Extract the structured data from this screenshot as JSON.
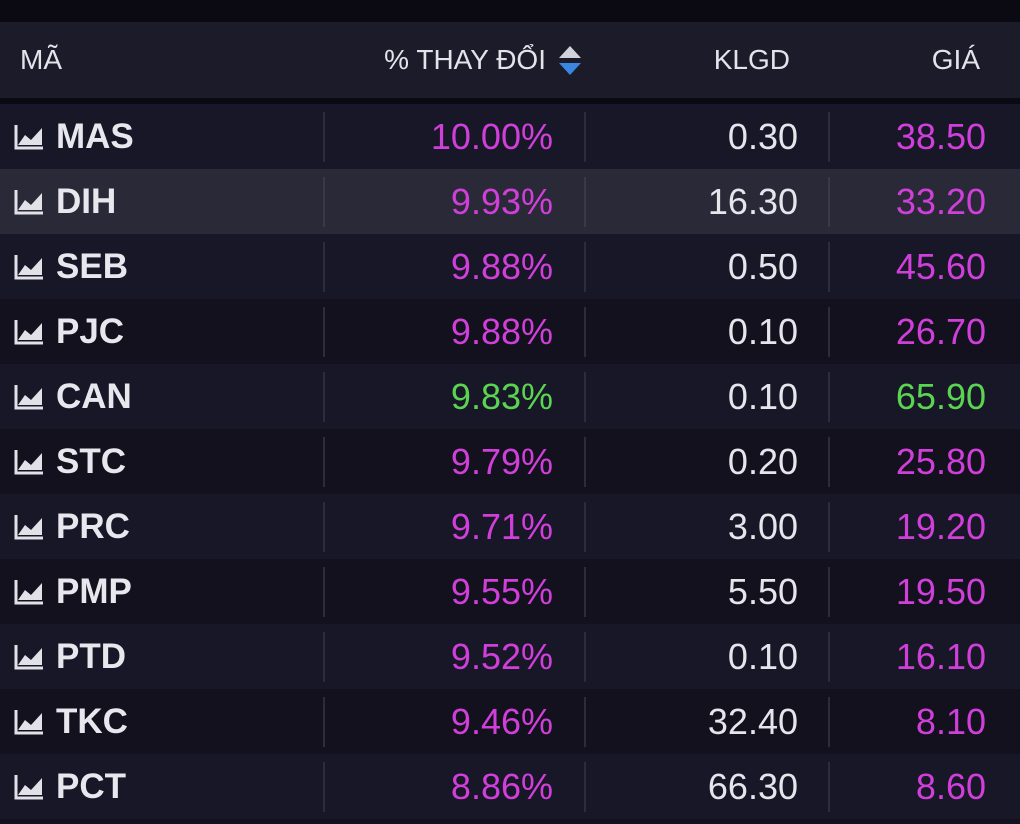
{
  "header": {
    "code": "MÃ",
    "change": "% THAY ĐỔI",
    "volume": "KLGD",
    "price": "GIÁ"
  },
  "colors": {
    "up": "#d13fdb",
    "ceiling": "#5ad451",
    "neutral": "#e6e5ec",
    "sort_up": "#cfd3dc",
    "sort_down": "#3b86e0"
  },
  "icons": {
    "row": "chart-icon",
    "sort": "sort-icon"
  },
  "rows": [
    {
      "code": "MAS",
      "change": "10.00%",
      "volume": "0.30",
      "price": "38.50",
      "status": "up"
    },
    {
      "code": "DIH",
      "change": "9.93%",
      "volume": "16.30",
      "price": "33.20",
      "status": "up"
    },
    {
      "code": "SEB",
      "change": "9.88%",
      "volume": "0.50",
      "price": "45.60",
      "status": "up"
    },
    {
      "code": "PJC",
      "change": "9.88%",
      "volume": "0.10",
      "price": "26.70",
      "status": "up"
    },
    {
      "code": "CAN",
      "change": "9.83%",
      "volume": "0.10",
      "price": "65.90",
      "status": "ceiling"
    },
    {
      "code": "STC",
      "change": "9.79%",
      "volume": "0.20",
      "price": "25.80",
      "status": "up"
    },
    {
      "code": "PRC",
      "change": "9.71%",
      "volume": "3.00",
      "price": "19.20",
      "status": "up"
    },
    {
      "code": "PMP",
      "change": "9.55%",
      "volume": "5.50",
      "price": "19.50",
      "status": "up"
    },
    {
      "code": "PTD",
      "change": "9.52%",
      "volume": "0.10",
      "price": "16.10",
      "status": "up"
    },
    {
      "code": "TKC",
      "change": "9.46%",
      "volume": "32.40",
      "price": "8.10",
      "status": "up"
    },
    {
      "code": "PCT",
      "change": "8.86%",
      "volume": "66.30",
      "price": "8.60",
      "status": "up"
    }
  ]
}
